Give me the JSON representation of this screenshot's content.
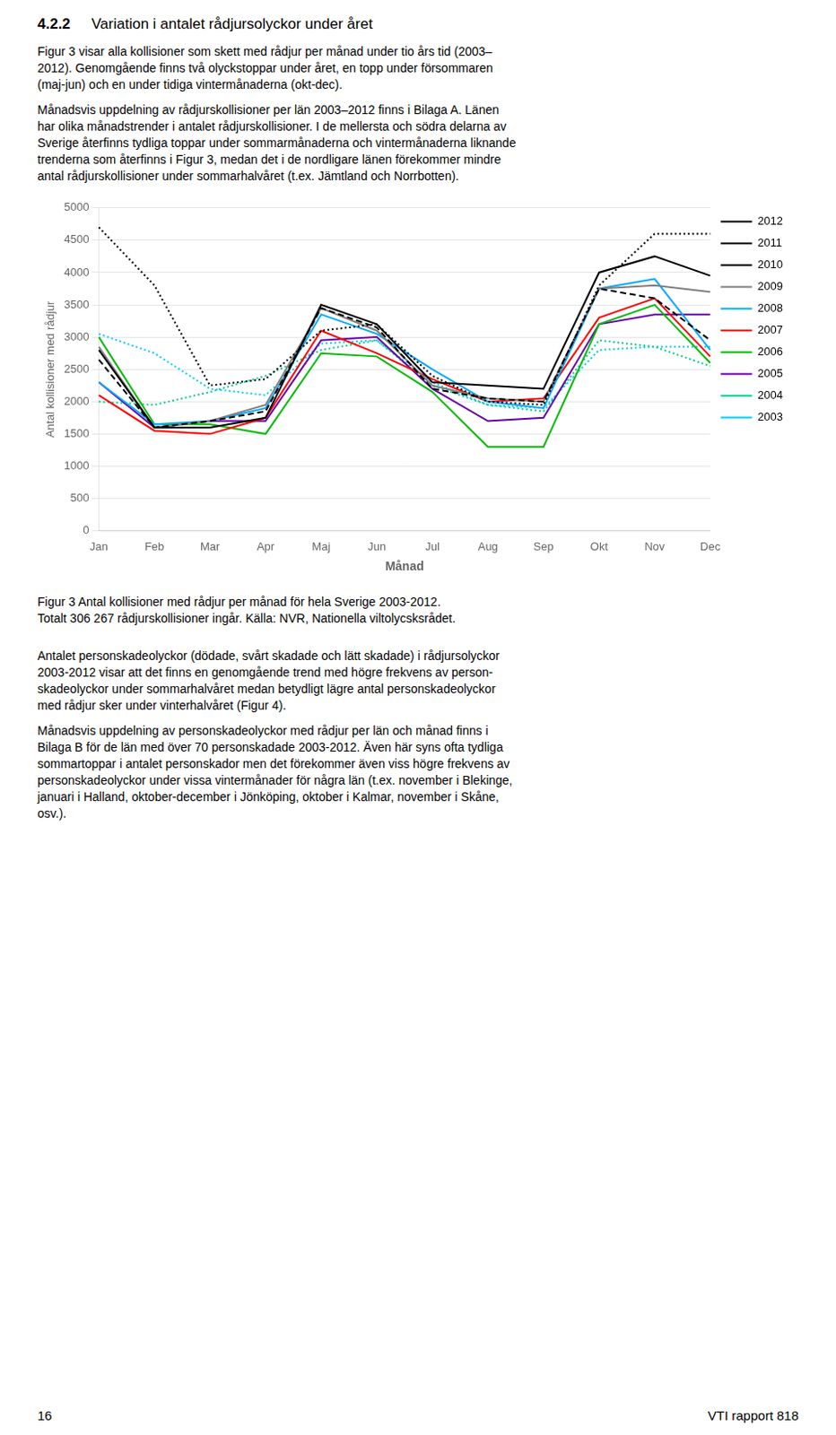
{
  "chart_data": {
    "type": "line",
    "title": "4.2.2 Variation i antalet rådjursolyckor under året",
    "x_label": "Månad",
    "y_label": "Antal kollisioner med rådjur",
    "categories": [
      "Jan",
      "Feb",
      "Mar",
      "Apr",
      "Maj",
      "Jun",
      "Jul",
      "Aug",
      "Sep",
      "Okt",
      "Nov",
      "Dec"
    ],
    "series": [
      {
        "name": "2012",
        "color": "#000000",
        "line_style": "solid",
        "values": [
          2800,
          1600,
          1600,
          1750,
          3500,
          3200,
          2300,
          2250,
          2200,
          4000,
          4250,
          3950
        ]
      },
      {
        "name": "2011",
        "color": "#000000",
        "line_style": "dashed",
        "values": [
          2650,
          1600,
          1700,
          1850,
          3450,
          3150,
          2200,
          2050,
          2000,
          3750,
          3600,
          2950
        ]
      },
      {
        "name": "2010",
        "color": "#000000",
        "line_style": "dotted",
        "values": [
          4700,
          3800,
          2250,
          2350,
          3100,
          3200,
          2400,
          2000,
          1950,
          3800,
          4600,
          4600
        ]
      },
      {
        "name": "2009",
        "color": "#808080",
        "line_style": "solid",
        "values": [
          2850,
          1600,
          1700,
          1950,
          3450,
          3100,
          2250,
          2050,
          2000,
          3750,
          3800,
          3700
        ]
      },
      {
        "name": "2008",
        "color": "#00aaff",
        "line_style": "solid",
        "values": [
          2300,
          1650,
          1700,
          1900,
          3350,
          3050,
          2500,
          2000,
          1900,
          3750,
          3900,
          2800
        ]
      },
      {
        "name": "2007",
        "color": "#ff0000",
        "line_style": "solid",
        "values": [
          2100,
          1550,
          1500,
          1750,
          3100,
          2750,
          2350,
          2000,
          2050,
          3300,
          3600,
          2700
        ]
      },
      {
        "name": "2006",
        "color": "#00bb00",
        "line_style": "solid",
        "values": [
          3000,
          1650,
          1650,
          1500,
          2750,
          2700,
          2150,
          1300,
          1300,
          3200,
          3500,
          2600
        ]
      },
      {
        "name": "2005",
        "color": "#6600aa",
        "line_style": "solid",
        "values": [
          2300,
          1600,
          1700,
          1700,
          2950,
          3000,
          2200,
          1700,
          1750,
          3200,
          3350,
          3350
        ]
      },
      {
        "name": "2004",
        "color": "#00cc88",
        "line_style": "dotted",
        "values": [
          2000,
          1950,
          2150,
          2400,
          2800,
          2950,
          2250,
          1950,
          1850,
          2950,
          2850,
          2550
        ]
      },
      {
        "name": "2003",
        "color": "#00ccff",
        "line_style": "dotted",
        "values": [
          3050,
          2750,
          2200,
          2100,
          2900,
          2950,
          2300,
          1950,
          1900,
          2800,
          2850,
          2850
        ]
      }
    ],
    "ylim": [
      0,
      5000
    ],
    "yticks": [
      0,
      500,
      1000,
      1500,
      2000,
      2500,
      3000,
      3500,
      4000,
      4500,
      5000
    ],
    "grid": "y",
    "legend": "right",
    "annotations": [
      [
        "Figur 3 visar alla kollisioner som skett med rådjur per månad under tio års tid (2003–",
        "2012). Genomgående finns två olyckstoppar under året, en topp under försommaren",
        "(maj-jun) och en under tidiga vintermånaderna (okt-dec)."
      ],
      [
        "Månadsvis uppdelning av rådjurskollisioner per län 2003–2012 finns i Bilaga A. Länen",
        "har olika månadstrender i antalet rådjurskollisioner. I de mellersta och södra delarna av",
        "Sverige återfinns tydliga toppar under sommarmånaderna och vintermånaderna liknande",
        "trenderna som återfinns i Figur 3, medan det i de nordligare länen förekommer mindre",
        "antal rådjurskollisioner under sommarhalvåret (t.ex. Jämtland och Norrbotten)."
      ],
      [
        "Figur 3 Antal kollisioner med rådjur per månad för hela Sverige 2003-2012.",
        "Totalt 306 267 rådjurskollisioner ingår. Källa: NVR, Nationella viltolycsksrådet."
      ],
      [
        "Antalet personskadeolyckor (dödade, svårt skadade och lätt skadade) i rådjursolyckor",
        "2003-2012 visar att det finns en genomgående trend med högre frekvens av person-",
        "skadeolyckor under sommarhalvåret medan betydligt lägre antal personskadeolyckor",
        "med rådjur sker under vinterhalvåret (Figur 4)."
      ],
      [
        "Månadsvis uppdelning av personskadeolyckor med rådjur per län och månad finns i",
        "Bilaga B för de län med över 70 personskadade 2003-2012. Även här syns ofta tydliga",
        "sommartoppar i antalet personskador men det förekommer även viss högre frekvens av",
        "personskadeolyckor under vissa vintermånader för några län (t.ex. november i Blekinge,",
        "januari i Halland, oktober-december i Jönköping, oktober i Kalmar, november i Skåne,",
        "osv.)."
      ],
      [
        "16",
        "VTI rapport 818"
      ]
    ]
  }
}
